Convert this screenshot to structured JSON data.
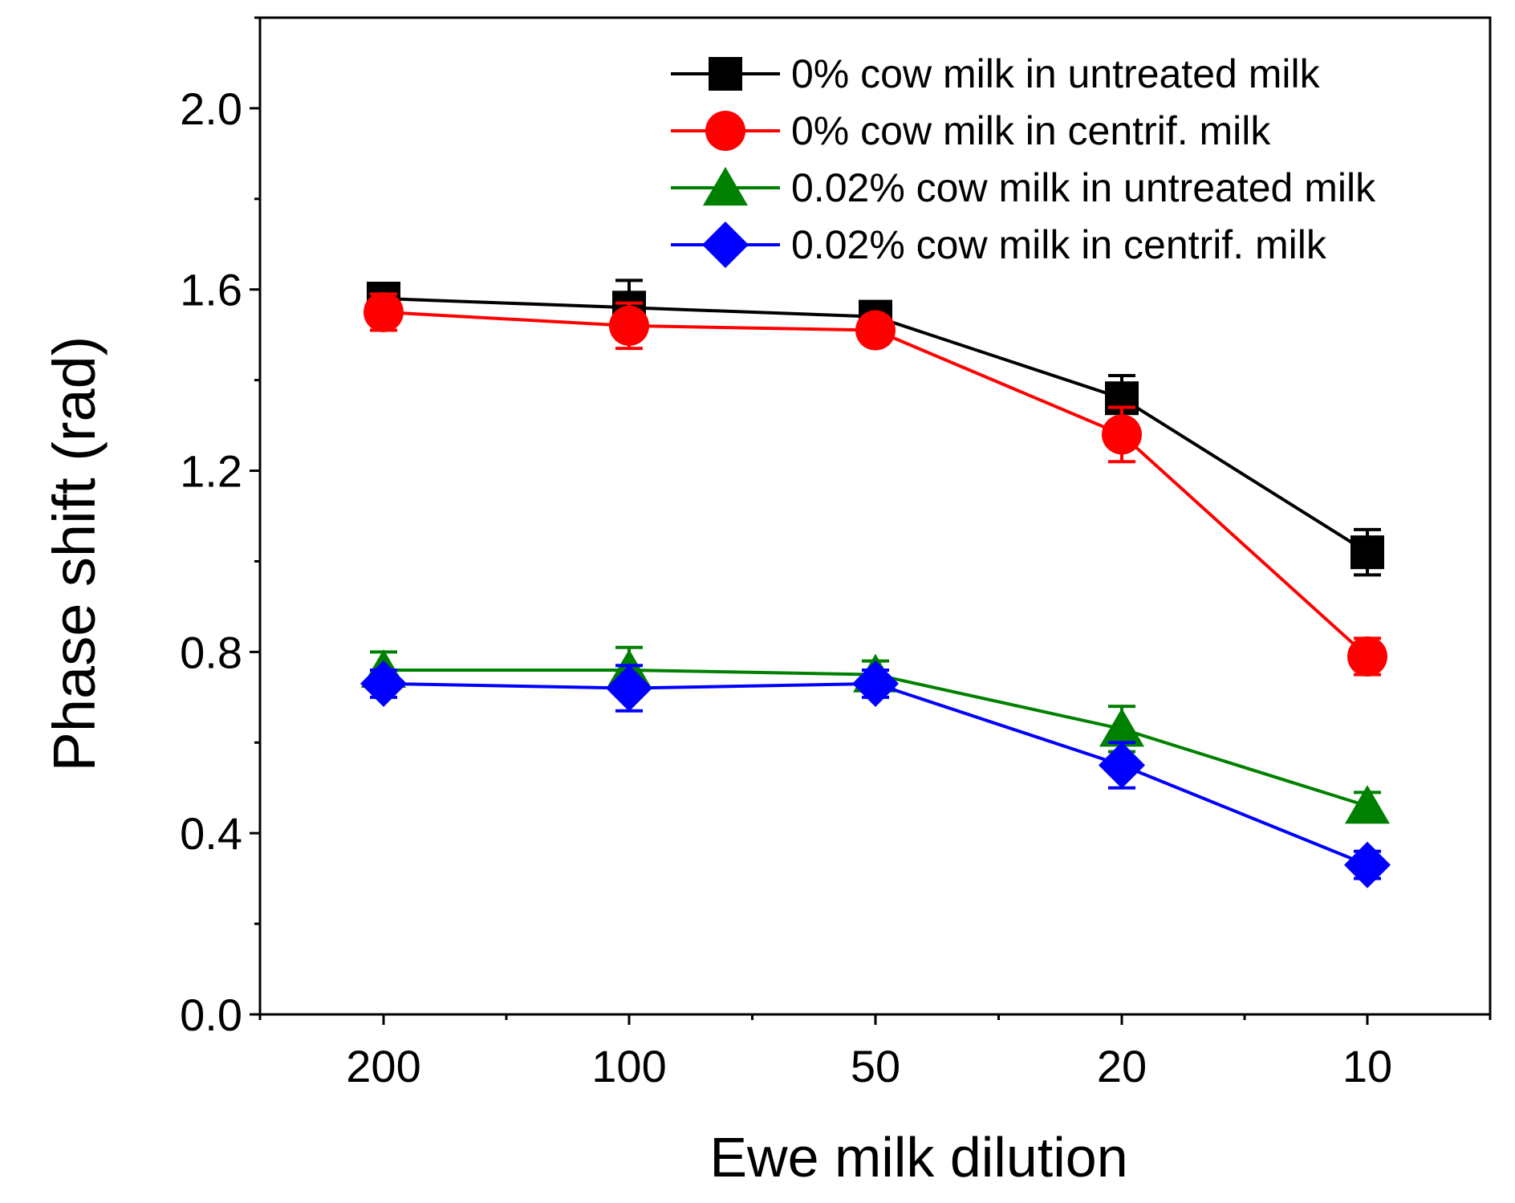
{
  "chart_data": {
    "type": "line",
    "title": "",
    "xlabel": "Ewe milk dilution",
    "ylabel": "Phase shift (rad)",
    "categories": [
      "200",
      "100",
      "50",
      "20",
      "10"
    ],
    "ylim": [
      0.0,
      2.2
    ],
    "yticks": [
      "0.0",
      "0.4",
      "0.8",
      "1.2",
      "1.6",
      "2.0"
    ],
    "yticks_values": [
      0.0,
      0.4,
      0.8,
      1.2,
      1.6,
      2.0
    ],
    "grid": false,
    "legend_position": "top-right",
    "series": [
      {
        "name": "0% cow milk in untreated milk",
        "color": "#000000",
        "marker": "square",
        "values": [
          1.58,
          1.56,
          1.54,
          1.36,
          1.02
        ],
        "errors": [
          0.03,
          0.06,
          0.03,
          0.05,
          0.05
        ]
      },
      {
        "name": "0% cow milk in centrif. milk",
        "color": "#ff0000",
        "marker": "circle",
        "values": [
          1.55,
          1.52,
          1.51,
          1.28,
          0.79
        ],
        "errors": [
          0.04,
          0.05,
          0.03,
          0.06,
          0.04
        ]
      },
      {
        "name": "0.02% cow milk in untreated milk",
        "color": "#008000",
        "marker": "triangle",
        "values": [
          0.76,
          0.76,
          0.75,
          0.63,
          0.46
        ],
        "errors": [
          0.04,
          0.05,
          0.03,
          0.05,
          0.03
        ]
      },
      {
        "name": "0.02% cow milk in centrif. milk",
        "color": "#0000ff",
        "marker": "diamond",
        "values": [
          0.73,
          0.72,
          0.73,
          0.55,
          0.33
        ],
        "errors": [
          0.03,
          0.05,
          0.03,
          0.05,
          0.03
        ]
      }
    ]
  }
}
